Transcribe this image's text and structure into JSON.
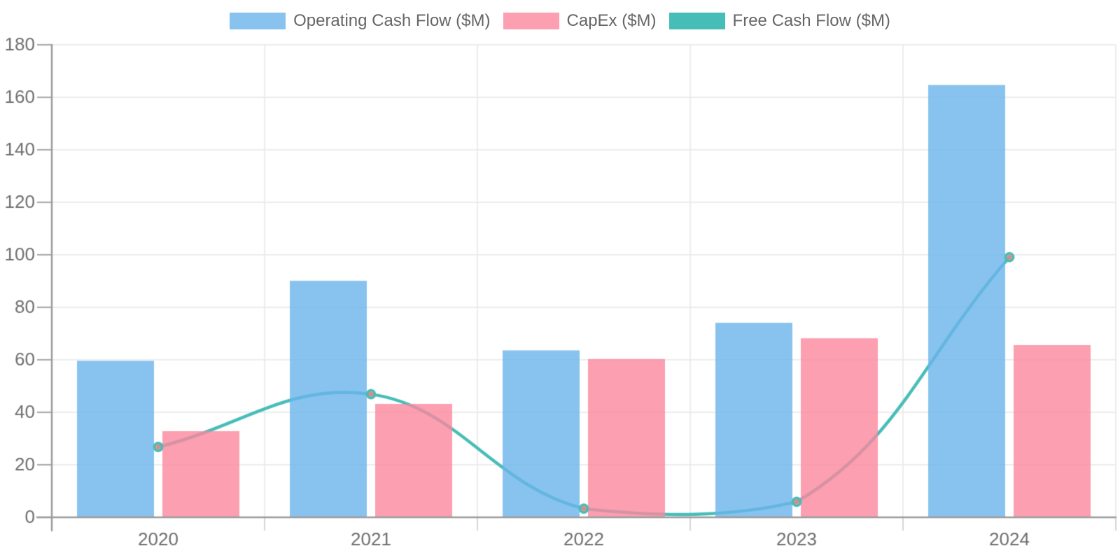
{
  "chart_data": {
    "type": "bar",
    "categories": [
      "2020",
      "2021",
      "2022",
      "2023",
      "2024"
    ],
    "series": [
      {
        "name": "Operating Cash Flow ($M)",
        "type": "bar",
        "color": "#6AB4EB",
        "fill_opacity": 0.8,
        "values": [
          59.6,
          90.1,
          63.6,
          74.1,
          164.7
        ]
      },
      {
        "name": "CapEx ($M)",
        "type": "bar",
        "color": "#FA879E",
        "fill_opacity": 0.8,
        "values": [
          32.8,
          43.2,
          60.3,
          68.2,
          65.6
        ]
      },
      {
        "name": "Free Cash Flow ($M)",
        "type": "line",
        "color": "#47BDB8",
        "marker_fill": "#DB8B85",
        "line_width": 4.5,
        "values": [
          26.8,
          46.9,
          3.3,
          5.9,
          99.1
        ]
      }
    ],
    "title": "",
    "xlabel": "",
    "ylabel": "",
    "ylim": [
      0,
      180
    ],
    "yticks": [
      0,
      20,
      40,
      60,
      80,
      100,
      120,
      140,
      160,
      180
    ],
    "grid": true,
    "legend_position": "top",
    "line_tension": 0.4,
    "colors": {
      "background": "#FFFFFF",
      "grid": "#E7E7E7",
      "axis": "#9B9B9B",
      "tick": "#ACACAC",
      "x_tick": "#D6D6D6",
      "tick_label": "#6E6E6E",
      "legend_text": "#666666"
    }
  }
}
